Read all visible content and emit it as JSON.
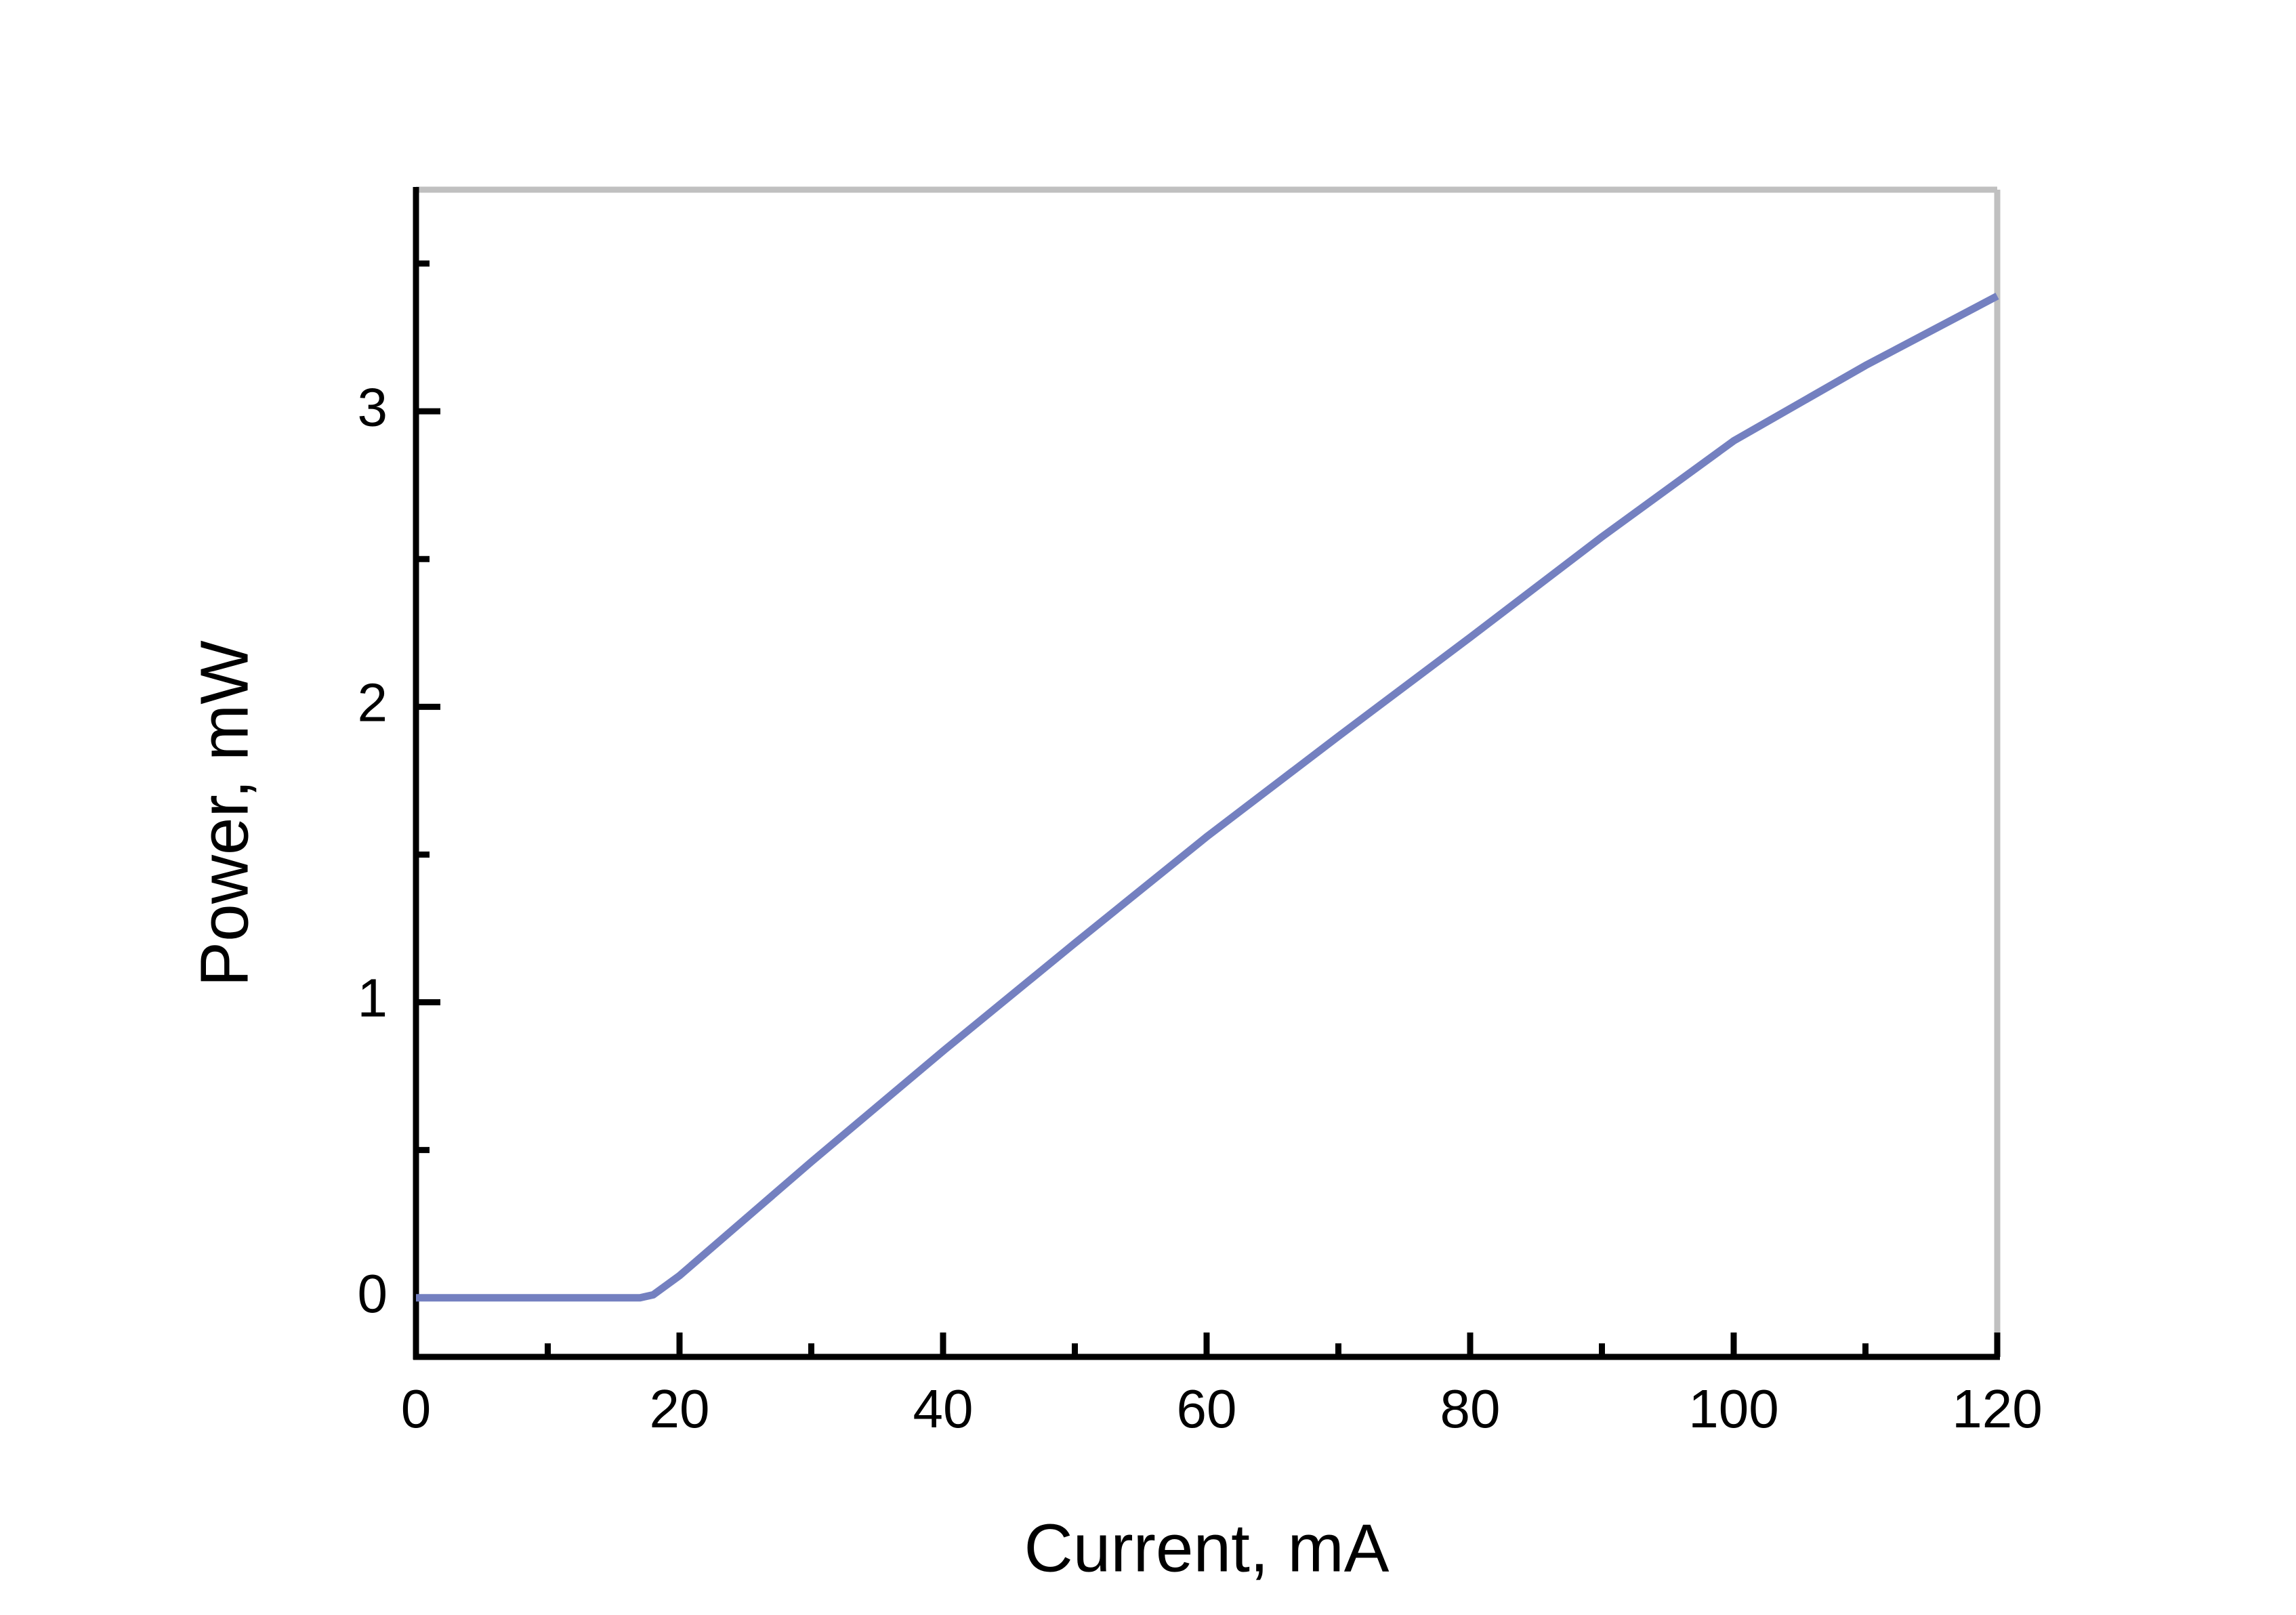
{
  "chart_data": {
    "type": "line",
    "x_label": "Current, mA",
    "y_label": "Power, mW",
    "xlim": [
      0,
      120
    ],
    "ylim": [
      -0.2,
      3.75
    ],
    "xticks": [
      0,
      20,
      40,
      60,
      80,
      100,
      120
    ],
    "yticks": [
      0,
      1,
      2,
      3
    ],
    "xticks_minor": [
      10,
      30,
      50,
      70,
      90,
      110
    ],
    "yticks_minor": [
      0.5,
      1.5,
      2.5,
      3.5
    ],
    "x": [
      0,
      10,
      15,
      17,
      18,
      20,
      30,
      40,
      50,
      60,
      70,
      80,
      90,
      100,
      110,
      120
    ],
    "series": [
      {
        "color": "#7480c0",
        "values": [
          0,
          0,
          0,
          0,
          0.01,
          0.075,
          0.46,
          0.835,
          1.2,
          1.56,
          1.9,
          2.235,
          2.575,
          2.9,
          3.155,
          3.39
        ]
      }
    ]
  }
}
